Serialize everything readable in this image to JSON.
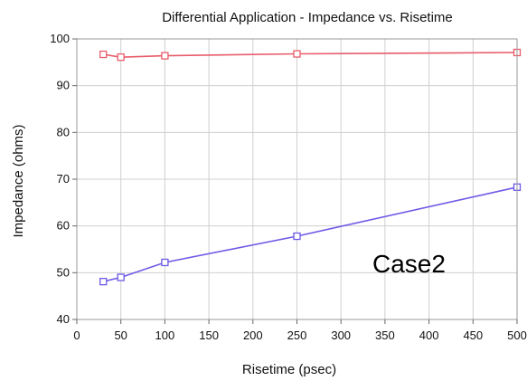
{
  "chart_data": {
    "type": "line",
    "title": "Differential Application - Impedance vs. Risetime",
    "xlabel": "Risetime (psec)",
    "ylabel": "Impedance (ohms)",
    "annotation": "Case2",
    "xlim": [
      0,
      500
    ],
    "ylim": [
      40,
      100
    ],
    "x_ticks": [
      0,
      50,
      100,
      150,
      200,
      250,
      300,
      350,
      400,
      450,
      500
    ],
    "y_ticks": [
      40,
      50,
      60,
      70,
      80,
      90,
      100
    ],
    "grid": true,
    "series": [
      {
        "color": "#e85c6a",
        "marker": "square",
        "points": [
          {
            "x": 30,
            "y": 96.7
          },
          {
            "x": 50,
            "y": 96.1
          },
          {
            "x": 100,
            "y": 96.4
          },
          {
            "x": 250,
            "y": 96.8
          },
          {
            "x": 500,
            "y": 97.1
          }
        ]
      },
      {
        "color": "#6d5ae6",
        "marker": "square",
        "points": [
          {
            "x": 30,
            "y": 48.1
          },
          {
            "x": 50,
            "y": 49.0
          },
          {
            "x": 100,
            "y": 52.2
          },
          {
            "x": 250,
            "y": 57.8
          },
          {
            "x": 500,
            "y": 68.3
          }
        ]
      }
    ]
  }
}
